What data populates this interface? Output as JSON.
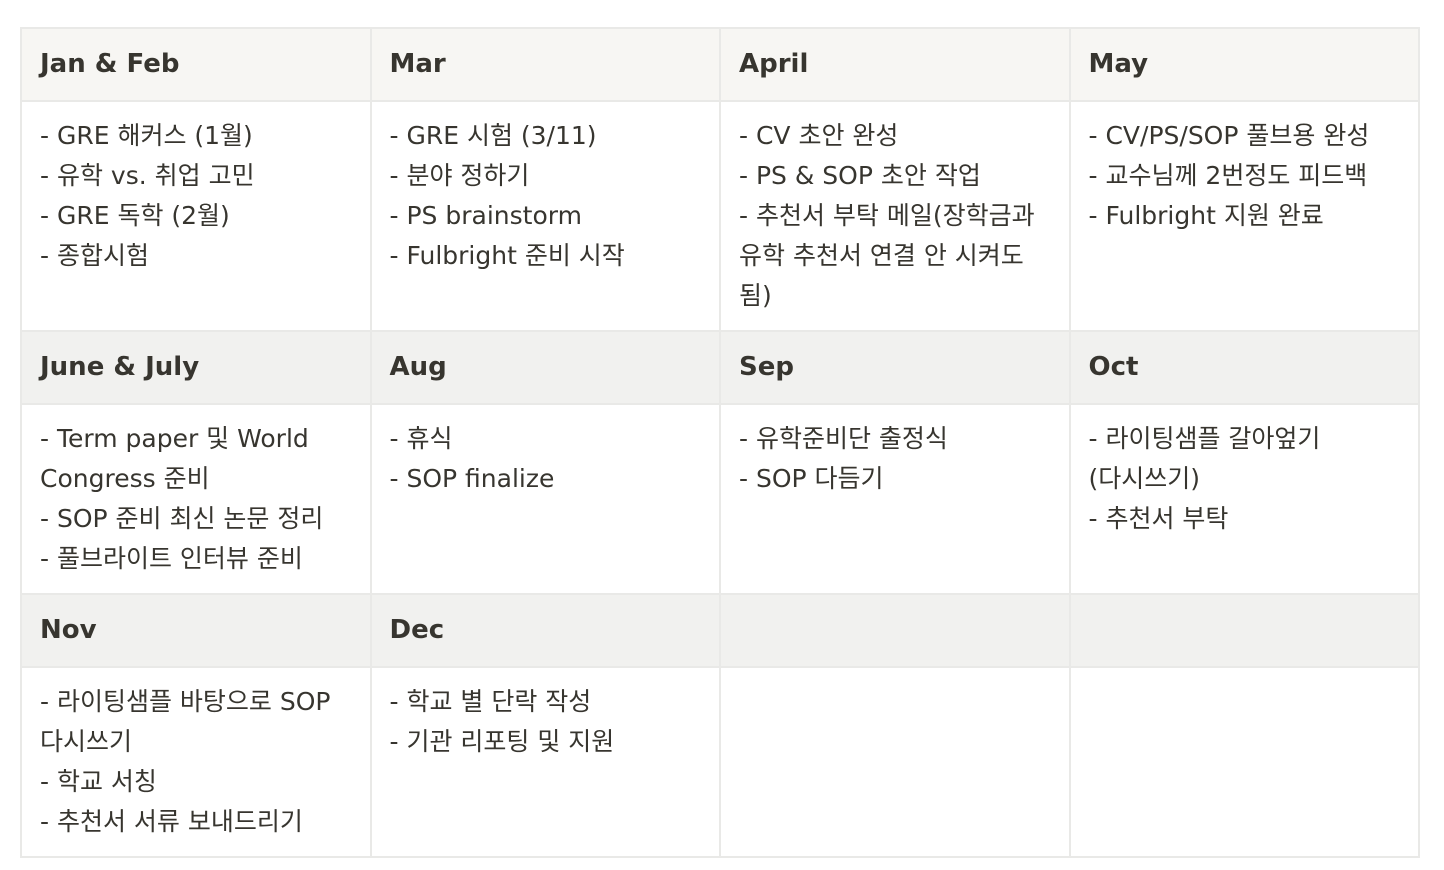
{
  "table": {
    "rows": [
      {
        "headers": [
          "Jan & Feb",
          "Mar",
          "April",
          "May"
        ],
        "cells": [
          [
            "- GRE 해커스 (1월)",
            "- 유학 vs. 취업 고민",
            "- GRE 독학 (2월)",
            "- 종합시험"
          ],
          [
            "- GRE 시험 (3/11)",
            "- 분야 정하기",
            "- PS brainstorm",
            "- Fulbright 준비 시작"
          ],
          [
            "- CV 초안 완성",
            "- PS & SOP 초안 작업",
            "- 추천서 부탁 메일(장학금과 유학 추천서 연결 안 시켜도 됨)"
          ],
          [
            "- CV/PS/SOP 풀브용 완성",
            "- 교수님께 2번정도 피드백",
            "- Fulbright 지원 완료"
          ]
        ]
      },
      {
        "headers": [
          "June & July",
          "Aug",
          "Sep",
          "Oct"
        ],
        "cells": [
          [
            "- Term paper 및 World Congress 준비",
            "- SOP 준비 최신 논문 정리",
            "- 풀브라이트 인터뷰 준비"
          ],
          [
            "- 휴식",
            "- SOP finalize"
          ],
          [
            "- 유학준비단 출정식",
            "- SOP 다듬기"
          ],
          [
            "- 라이팅샘플 갈아엎기 (다시쓰기)",
            "- 추천서 부탁"
          ]
        ]
      },
      {
        "headers": [
          "Nov",
          "Dec",
          "",
          ""
        ],
        "cells": [
          [
            "- 라이팅샘플 바탕으로 SOP 다시쓰기",
            "- 학교 서칭",
            "- 추천서 서류 보내드리기"
          ],
          [
            "- 학교 별 단락 작성",
            "- 기관 리포팅 및 지원"
          ],
          [],
          []
        ]
      }
    ]
  }
}
